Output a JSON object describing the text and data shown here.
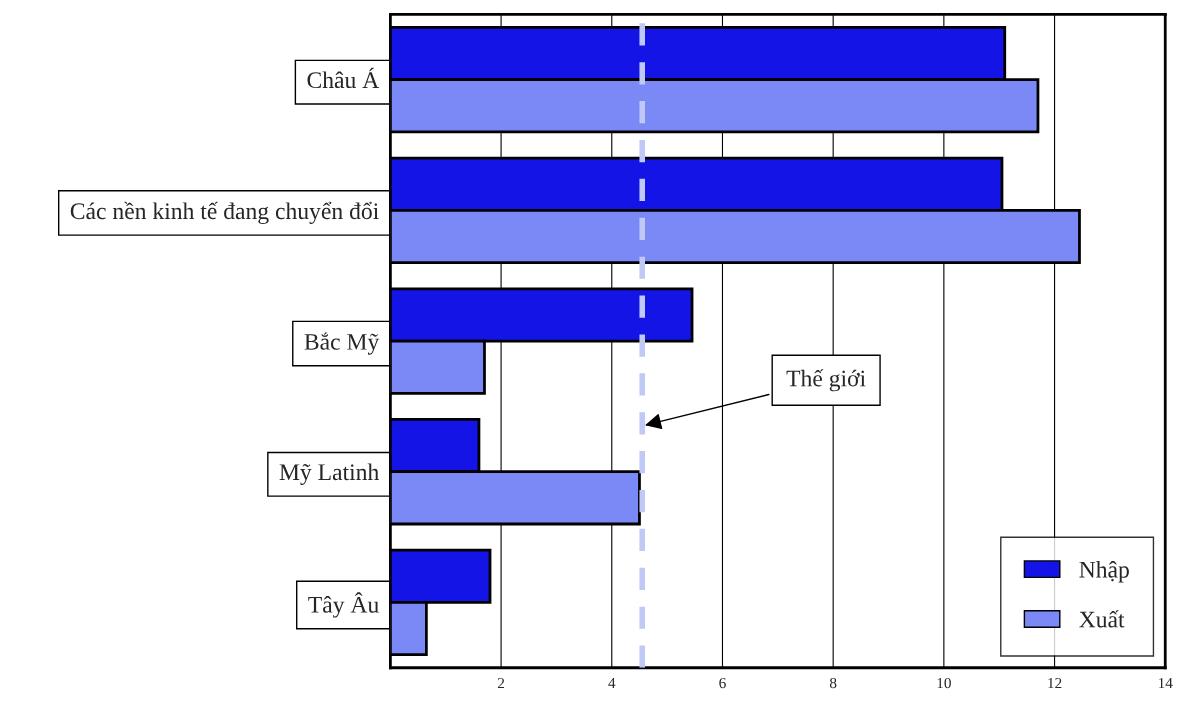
{
  "chart_data": {
    "type": "bar",
    "orientation": "horizontal",
    "categories": [
      "Châu Á",
      "Các nền kinh tế đang chuyển đổi",
      "Bắc Mỹ",
      "Mỹ Latinh",
      "Tây Âu"
    ],
    "series": [
      {
        "name": "Nhập",
        "color": "#1414e6",
        "values": [
          11.1,
          11.05,
          5.45,
          1.6,
          1.8
        ]
      },
      {
        "name": "Xuất",
        "color": "#7b89f7",
        "values": [
          11.7,
          12.45,
          1.7,
          4.5,
          0.65
        ]
      }
    ],
    "xlim": [
      0,
      14
    ],
    "xticks": [
      {
        "value": 0,
        "label": null
      },
      2,
      4,
      6,
      8,
      10,
      12,
      14
    ],
    "grid": "x",
    "legend": "bottom right",
    "ref_lines": [
      {
        "axis": "x",
        "value": 4.55,
        "label": "Thế giới",
        "color": "#c0c8f5",
        "line_style": "dashed"
      }
    ]
  }
}
